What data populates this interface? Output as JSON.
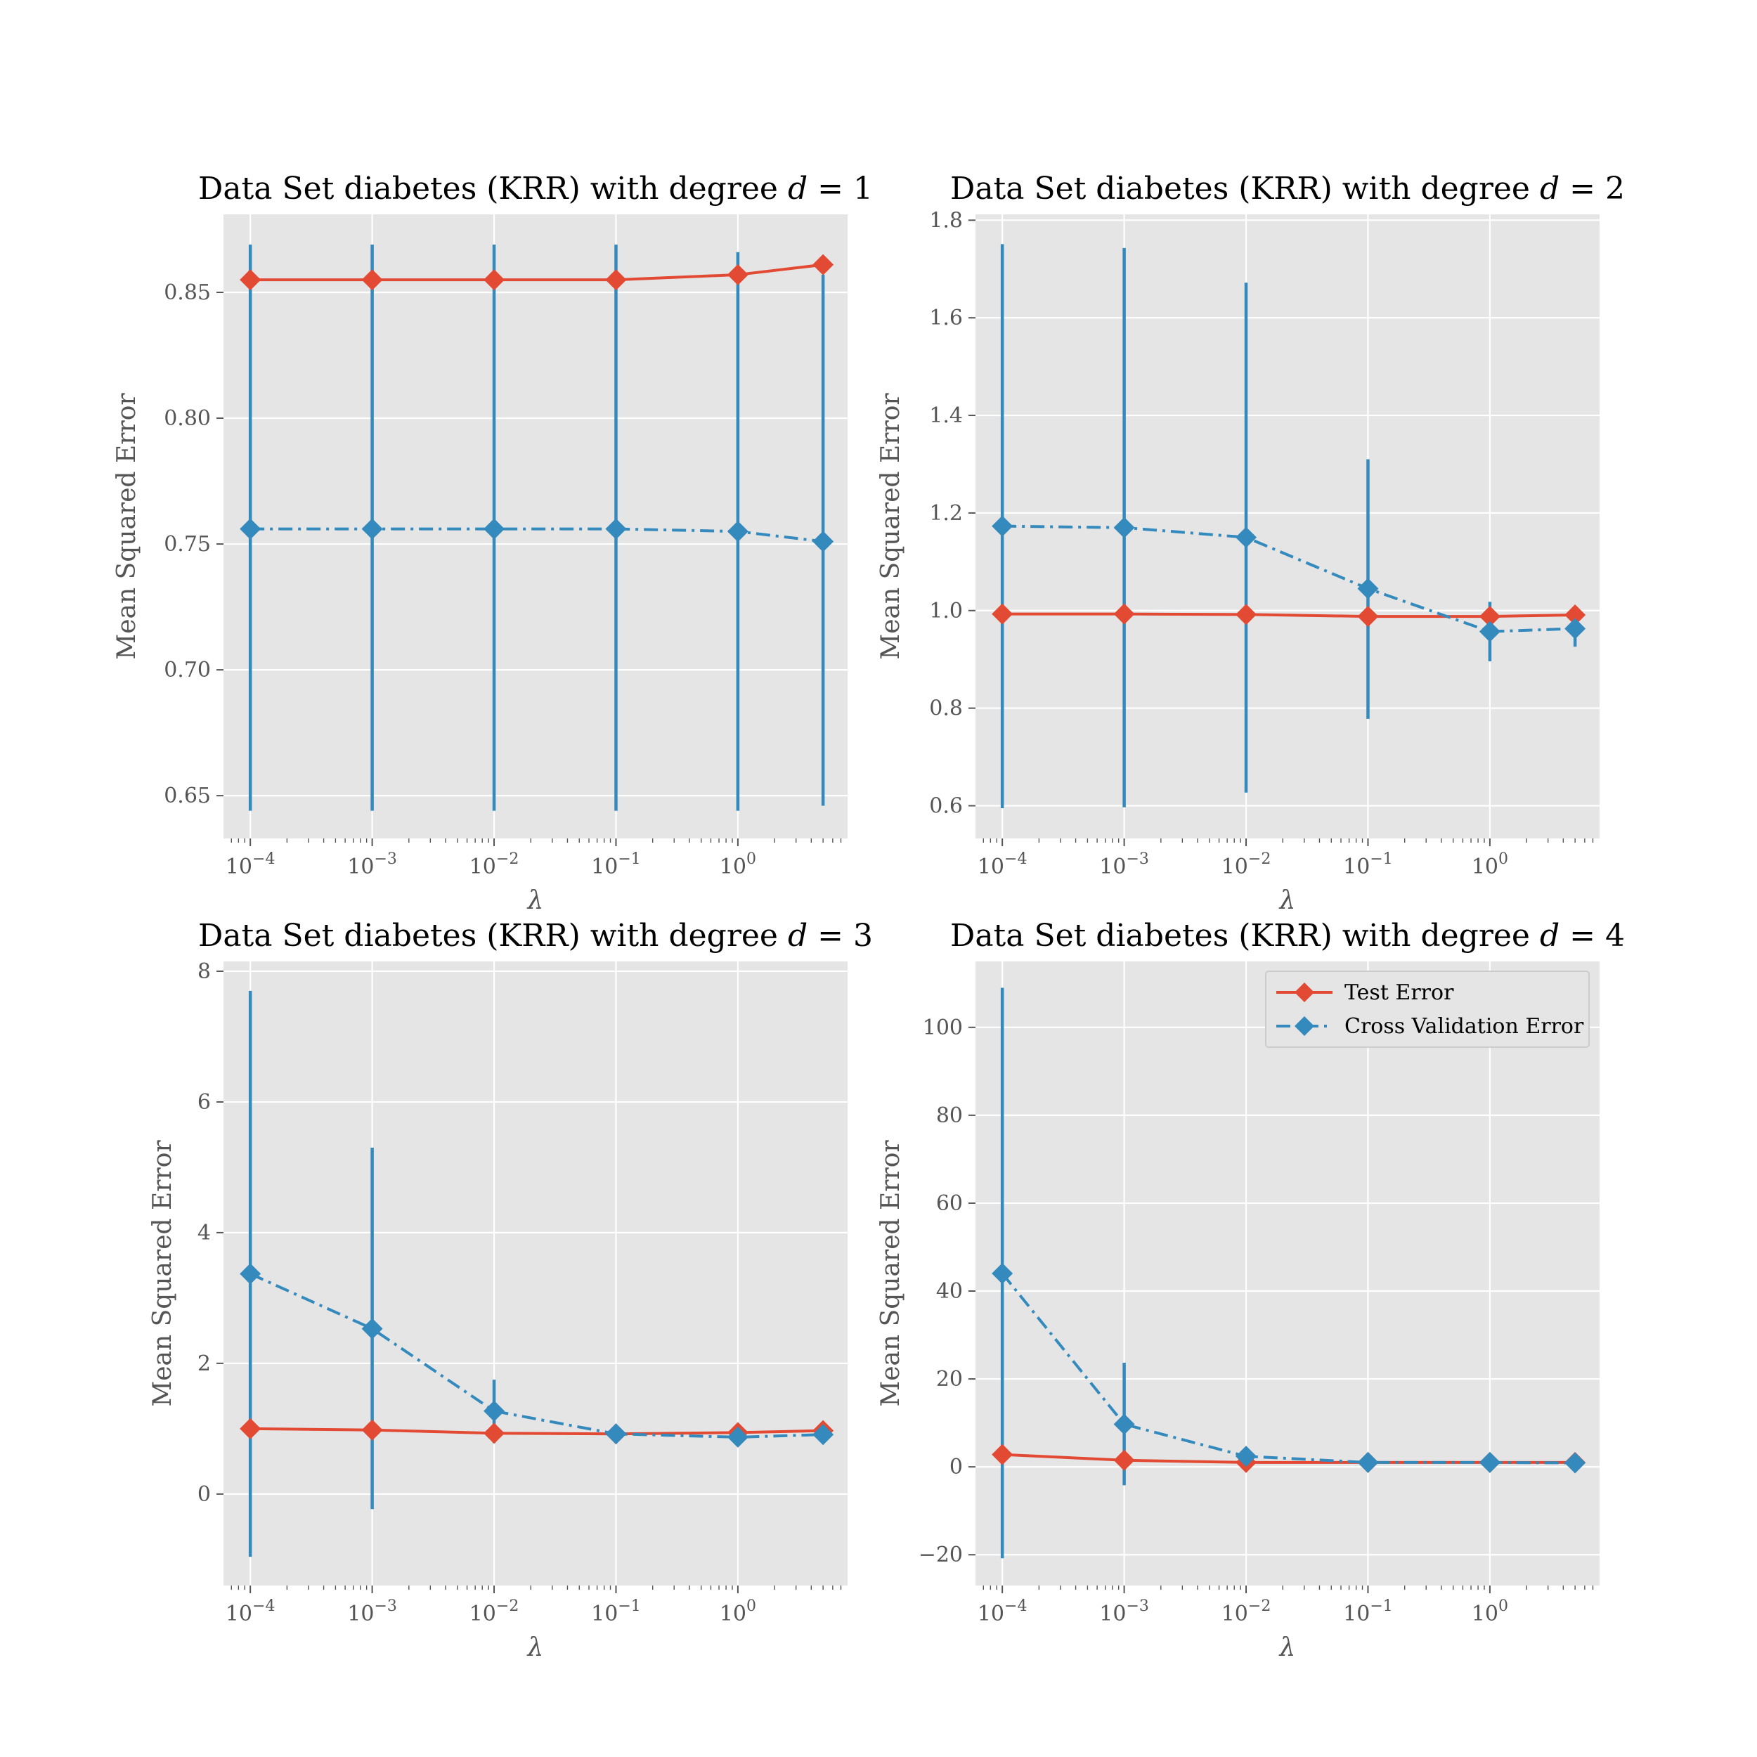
{
  "figure": {
    "series_names": [
      "Test Error",
      "Cross Validation Error"
    ],
    "colors": {
      "test": "#E24A33",
      "cv": "#348ABD",
      "panel_bg": "#E5E5E5",
      "grid": "#FFFFFF",
      "tick_text": "#555555"
    }
  },
  "chart_data": [
    {
      "type": "line",
      "title_text": "Data Set diabetes (KRR) with degree ",
      "title_var": "d",
      "title_eq": " = 1",
      "xlabel": "λ",
      "ylabel": "Mean Squared Error",
      "xscale": "log",
      "x": [
        0.0001,
        0.001,
        0.01,
        0.1,
        1,
        5
      ],
      "xlim_log10": [
        -4.22,
        0.9
      ],
      "ylim": [
        0.633,
        0.881
      ],
      "yticks": [
        0.65,
        0.7,
        0.75,
        0.8,
        0.85
      ],
      "ytick_labels": [
        "0.65",
        "0.70",
        "0.75",
        "0.80",
        "0.85"
      ],
      "xtick_labels": [
        {
          "base": "10",
          "exp": "−4"
        },
        {
          "base": "10",
          "exp": "−3"
        },
        {
          "base": "10",
          "exp": "−2"
        },
        {
          "base": "10",
          "exp": "−1"
        },
        {
          "base": "10",
          "exp": "0"
        }
      ],
      "series": [
        {
          "name": "Test Error",
          "values": [
            0.855,
            0.855,
            0.855,
            0.855,
            0.857,
            0.861
          ]
        },
        {
          "name": "Cross Validation Error",
          "values": [
            0.756,
            0.756,
            0.756,
            0.756,
            0.755,
            0.751
          ],
          "error_low": [
            0.644,
            0.644,
            0.644,
            0.644,
            0.644,
            0.646
          ],
          "error_high": [
            0.869,
            0.869,
            0.869,
            0.869,
            0.866,
            0.857
          ]
        }
      ],
      "legend": false
    },
    {
      "type": "line",
      "title_text": "Data Set diabetes (KRR) with degree ",
      "title_var": "d",
      "title_eq": " = 2",
      "xlabel": "λ",
      "ylabel": "Mean Squared Error",
      "xscale": "log",
      "x": [
        0.0001,
        0.001,
        0.01,
        0.1,
        1,
        5
      ],
      "xlim_log10": [
        -4.22,
        0.9
      ],
      "ylim": [
        0.533,
        1.812
      ],
      "yticks": [
        0.6,
        0.8,
        1.0,
        1.2,
        1.4,
        1.6,
        1.8
      ],
      "ytick_labels": [
        "0.6",
        "0.8",
        "1.0",
        "1.2",
        "1.4",
        "1.6",
        "1.8"
      ],
      "xtick_labels": [
        {
          "base": "10",
          "exp": "−4"
        },
        {
          "base": "10",
          "exp": "−3"
        },
        {
          "base": "10",
          "exp": "−2"
        },
        {
          "base": "10",
          "exp": "−1"
        },
        {
          "base": "10",
          "exp": "0"
        }
      ],
      "series": [
        {
          "name": "Test Error",
          "values": [
            0.993,
            0.993,
            0.992,
            0.988,
            0.988,
            0.991
          ]
        },
        {
          "name": "Cross Validation Error",
          "values": [
            1.173,
            1.17,
            1.15,
            1.045,
            0.957,
            0.963
          ],
          "error_low": [
            0.595,
            0.597,
            0.627,
            0.778,
            0.896,
            0.926
          ],
          "error_high": [
            1.751,
            1.743,
            1.672,
            1.31,
            1.018,
            1.0
          ]
        }
      ],
      "legend": false
    },
    {
      "type": "line",
      "title_text": "Data Set diabetes (KRR) with degree ",
      "title_var": "d",
      "title_eq": " = 3",
      "xlabel": "λ",
      "ylabel": "Mean Squared Error",
      "xscale": "log",
      "x": [
        0.0001,
        0.001,
        0.01,
        0.1,
        1,
        5
      ],
      "xlim_log10": [
        -4.22,
        0.9
      ],
      "ylim": [
        -1.4,
        8.15
      ],
      "yticks": [
        0,
        2,
        4,
        6,
        8
      ],
      "ytick_labels": [
        "0",
        "2",
        "4",
        "6",
        "8"
      ],
      "xtick_labels": [
        {
          "base": "10",
          "exp": "−4"
        },
        {
          "base": "10",
          "exp": "−3"
        },
        {
          "base": "10",
          "exp": "−2"
        },
        {
          "base": "10",
          "exp": "−1"
        },
        {
          "base": "10",
          "exp": "0"
        }
      ],
      "series": [
        {
          "name": "Test Error",
          "values": [
            1.0,
            0.98,
            0.93,
            0.92,
            0.94,
            0.97
          ]
        },
        {
          "name": "Cross Validation Error",
          "values": [
            3.37,
            2.53,
            1.27,
            0.92,
            0.87,
            0.91
          ],
          "error_low": [
            -0.96,
            -0.23,
            0.78,
            0.9,
            0.82,
            0.87
          ],
          "error_high": [
            7.7,
            5.3,
            1.75,
            0.95,
            0.92,
            0.95
          ]
        }
      ],
      "legend": false
    },
    {
      "type": "line",
      "title_text": "Data Set diabetes (KRR) with degree ",
      "title_var": "d",
      "title_eq": " = 4",
      "xlabel": "λ",
      "ylabel": "Mean Squared Error",
      "xscale": "log",
      "x": [
        0.0001,
        0.001,
        0.01,
        0.1,
        1,
        5
      ],
      "xlim_log10": [
        -4.22,
        0.9
      ],
      "ylim": [
        -27.0,
        115.0
      ],
      "yticks": [
        -20,
        0,
        20,
        40,
        60,
        80,
        100
      ],
      "ytick_labels": [
        "−20",
        "0",
        "20",
        "40",
        "60",
        "80",
        "100"
      ],
      "xtick_labels": [
        {
          "base": "10",
          "exp": "−4"
        },
        {
          "base": "10",
          "exp": "−3"
        },
        {
          "base": "10",
          "exp": "−2"
        },
        {
          "base": "10",
          "exp": "−1"
        },
        {
          "base": "10",
          "exp": "0"
        }
      ],
      "series": [
        {
          "name": "Test Error",
          "values": [
            2.8,
            1.5,
            1.0,
            1.0,
            1.0,
            1.0
          ]
        },
        {
          "name": "Cross Validation Error",
          "values": [
            44.0,
            9.7,
            2.4,
            1.0,
            1.0,
            0.9
          ],
          "error_low": [
            -20.8,
            -4.2,
            1.5,
            0.9,
            0.9,
            0.8
          ],
          "error_high": [
            109.0,
            23.7,
            3.2,
            1.1,
            1.1,
            1.0
          ]
        }
      ],
      "legend": true,
      "legend_location": "upper right"
    }
  ]
}
